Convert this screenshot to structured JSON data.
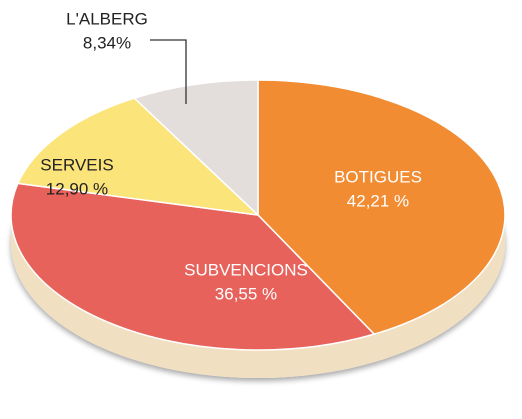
{
  "chart_data": {
    "type": "pie",
    "categories": [
      "BOTIGUES",
      "SUBVENCIONS",
      "SERVEIS",
      "L'ALBERG"
    ],
    "values": [
      42.21,
      36.55,
      12.9,
      8.34
    ],
    "value_labels": [
      "42,21 %",
      "36,55 %",
      "12,90 %",
      "8,34%"
    ],
    "colors": [
      "#f28c33",
      "#e8625c",
      "#fbe47a",
      "#e3dddb"
    ]
  }
}
